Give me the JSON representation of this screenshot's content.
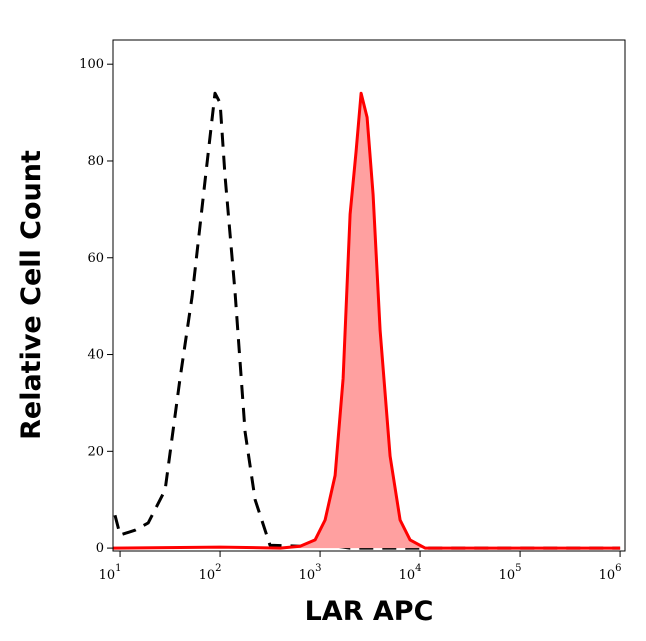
{
  "chart_data": {
    "type": "histogram-overlay",
    "x_label": "LAR APC",
    "y_label": "Relative Cell Count",
    "xscale": "log",
    "xlim": [
      8.5,
      1120000
    ],
    "ylim": [
      -0.6,
      105
    ],
    "xticks": [
      {
        "value": 10,
        "base": "10",
        "exp": "1"
      },
      {
        "value": 100,
        "base": "10",
        "exp": "2"
      },
      {
        "value": 1000,
        "base": "10",
        "exp": "3"
      },
      {
        "value": 10000,
        "base": "10",
        "exp": "4"
      },
      {
        "value": 100000,
        "base": "10",
        "exp": "5"
      },
      {
        "value": 1000000,
        "base": "10",
        "exp": "6"
      }
    ],
    "yticks": [
      0,
      20,
      40,
      60,
      80,
      100
    ],
    "series": [
      {
        "color": "#000000",
        "style": "dashed",
        "fill": false,
        "x": [
          8.9,
          10,
          14.1,
          19.1,
          28.2,
          39.8,
          52.5,
          70.8,
          89.1,
          100,
          112,
          141,
          178,
          224,
          316,
          631,
          1259,
          1995,
          1000000
        ],
        "values": [
          6.8,
          2.7,
          3.7,
          5.2,
          12,
          35,
          52,
          76,
          94,
          92,
          77,
          53,
          24,
          10,
          0.6,
          0.4,
          0.6,
          0,
          0
        ]
      },
      {
        "color": "#ff0000",
        "style": "solid",
        "fill": true,
        "fill_color": "#ffa0a0",
        "x": [
          8.5,
          100,
          398,
          631,
          891,
          1122,
          1413,
          1698,
          1995,
          2291,
          2570,
          2951,
          3388,
          3981,
          5012,
          6310,
          7943,
          11220,
          1000000
        ],
        "values": [
          0,
          0.2,
          0,
          0.4,
          1.7,
          5.8,
          15,
          35,
          69,
          82,
          94,
          89,
          73,
          45,
          19,
          5.8,
          1.7,
          0,
          0
        ]
      }
    ]
  }
}
